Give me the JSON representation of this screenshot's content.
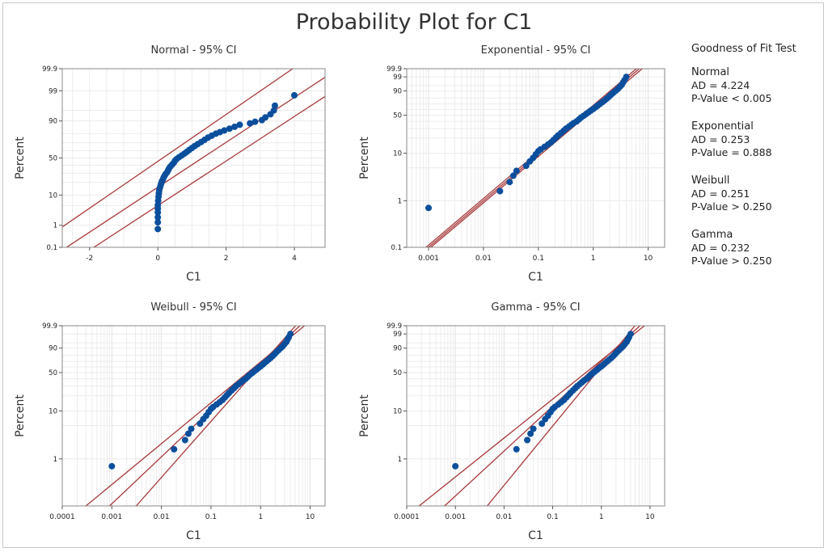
{
  "title": "Probability Plot for C1",
  "colors": {
    "point": "#0b4f9c",
    "line": "#a8393c",
    "grid": "#ececec",
    "axis": "#888888"
  },
  "goodness_of_fit": {
    "title": "Goodness of Fit Test",
    "entries": [
      {
        "name": "Normal",
        "ad": "AD = 4.224",
        "p": "P-Value < 0.005"
      },
      {
        "name": "Exponential",
        "ad": "AD = 0.253",
        "p": "P-Value = 0.888"
      },
      {
        "name": "Weibull",
        "ad": "AD = 0.251",
        "p": "P-Value > 0.250"
      },
      {
        "name": "Gamma",
        "ad": "AD = 0.232",
        "p": "P-Value > 0.250"
      }
    ]
  },
  "chart_data": [
    {
      "type": "scatter",
      "title": "Normal - 95% CI",
      "xlabel": "C1",
      "ylabel": "Percent",
      "x_scale": "linear",
      "xlim": [
        -2.8,
        4.9
      ],
      "x_ticks": [
        "-2",
        "0",
        "2",
        "4"
      ],
      "x_tick_values": [
        -2,
        0,
        2,
        4
      ],
      "y_scale": "normal-probability",
      "y_ticks": [
        "0.1",
        "1",
        "10",
        "50",
        "90",
        "99",
        "99.9"
      ],
      "y_tick_values": [
        0.1,
        1,
        10,
        50,
        90,
        99,
        99.9
      ],
      "fit_line": {
        "x": [
          -2.8,
          4.9
        ],
        "y": [
          0.0716,
          99.74
        ]
      },
      "ci_lower": {
        "x": [
          -2.0,
          4.9
        ],
        "y": [
          0.0716,
          98.34
        ]
      },
      "ci_upper": {
        "x": [
          -2.8,
          4.2
        ],
        "y": [
          0.85,
          99.95
        ]
      },
      "points": {
        "x": [
          0.0,
          0.0,
          0.0,
          0.0,
          0.0,
          0.0,
          0.01,
          0.02,
          0.03,
          0.04,
          0.06,
          0.08,
          0.1,
          0.12,
          0.15,
          0.17,
          0.2,
          0.23,
          0.27,
          0.3,
          0.33,
          0.37,
          0.42,
          0.47,
          0.5,
          0.55,
          0.62,
          0.7,
          0.78,
          0.85,
          0.92,
          1.0,
          1.08,
          1.17,
          1.27,
          1.37,
          1.47,
          1.58,
          1.7,
          1.82,
          1.95,
          2.1,
          2.25,
          2.4,
          2.7,
          2.85,
          3.05,
          3.15,
          3.3,
          3.4,
          3.43,
          4.0
        ],
        "y": [
          0.7,
          1.3,
          2.0,
          3.0,
          4.0,
          5.2,
          7.0,
          9.0,
          11.0,
          13.0,
          15.0,
          17.0,
          19.0,
          21.0,
          23.0,
          25.0,
          27.0,
          29.0,
          31.0,
          33.5,
          36.0,
          38.5,
          41.0,
          43.5,
          46.0,
          48.5,
          51.0,
          53.5,
          56.0,
          58.5,
          61.0,
          63.5,
          66.0,
          68.5,
          71.0,
          73.5,
          76.0,
          78.0,
          80.0,
          81.5,
          83.0,
          84.5,
          86.0,
          87.5,
          88.5,
          89.5,
          90.5,
          92.0,
          93.5,
          95.0,
          96.5,
          98.5
        ]
      }
    },
    {
      "type": "scatter",
      "title": "Exponential - 95% CI",
      "xlabel": "C1",
      "ylabel": "Percent",
      "x_scale": "log",
      "xlim": [
        0.0004,
        20
      ],
      "x_ticks": [
        "0.001",
        "0.01",
        "0.1",
        "1",
        "10"
      ],
      "x_tick_values": [
        0.001,
        0.01,
        0.1,
        1,
        10
      ],
      "y_scale": "exponential-probability",
      "y_ticks": [
        "0.1",
        "1",
        "10",
        "50",
        "90",
        "99",
        "99.9"
      ],
      "y_tick_values": [
        0.1,
        1,
        10,
        50,
        90,
        99,
        99.9
      ],
      "fit_line": {
        "x": [
          0.001,
          6.9
        ],
        "y": [
          0.1,
          99.9
        ]
      },
      "ci_lower": {
        "x": [
          0.0011,
          7.8
        ],
        "y": [
          0.1,
          99.9
        ]
      },
      "ci_upper": {
        "x": [
          0.0009,
          6.1
        ],
        "y": [
          0.1,
          99.9
        ]
      },
      "points": {
        "x": [
          0.001,
          0.02,
          0.03,
          0.035,
          0.04,
          0.06,
          0.07,
          0.08,
          0.09,
          0.1,
          0.11,
          0.13,
          0.15,
          0.17,
          0.19,
          0.21,
          0.23,
          0.26,
          0.29,
          0.32,
          0.36,
          0.4,
          0.44,
          0.5,
          0.55,
          0.6,
          0.67,
          0.74,
          0.82,
          0.9,
          1.0,
          1.1,
          1.2,
          1.32,
          1.45,
          1.6,
          1.75,
          1.92,
          2.1,
          2.3,
          2.55,
          2.8,
          3.05,
          3.3,
          3.5,
          3.7,
          4.0
        ],
        "y": [
          0.7,
          1.6,
          2.5,
          3.4,
          4.3,
          5.5,
          6.8,
          8.0,
          9.5,
          11.0,
          12.0,
          13.5,
          15.0,
          16.5,
          18.5,
          20.5,
          22.5,
          25.0,
          27.5,
          30.0,
          32.5,
          35.0,
          37.5,
          40.0,
          43.0,
          46.0,
          49.0,
          52.0,
          55.0,
          58.0,
          61.0,
          64.0,
          67.0,
          70.0,
          73.0,
          76.0,
          79.0,
          82.0,
          85.0,
          87.5,
          90.0,
          92.0,
          94.0,
          95.5,
          97.0,
          98.0,
          99.0
        ]
      }
    },
    {
      "type": "scatter",
      "title": "Weibull - 95% CI",
      "xlabel": "C1",
      "ylabel": "Percent",
      "x_scale": "log",
      "xlim": [
        0.0001,
        20
      ],
      "x_ticks": [
        "0.0001",
        "0.001",
        "0.01",
        "0.1",
        "1",
        "10"
      ],
      "x_tick_values": [
        0.0001,
        0.001,
        0.01,
        0.1,
        1,
        10
      ],
      "y_scale": "weibull-probability",
      "y_ticks": [
        "1",
        "10",
        "50",
        "90",
        "99.9"
      ],
      "y_tick_values": [
        1,
        10,
        50,
        90,
        99.9
      ],
      "fit_line": {
        "x": [
          0.0009,
          6.2
        ],
        "y": [
          0.1,
          99.9
        ]
      },
      "ci_lower": {
        "x": [
          0.0031,
          5.1
        ],
        "y": [
          0.1,
          99.9
        ]
      },
      "ci_upper": {
        "x": [
          0.0003,
          7.7
        ],
        "y": [
          0.1,
          99.9
        ]
      },
      "points": {
        "x": [
          0.001,
          0.018,
          0.03,
          0.035,
          0.04,
          0.06,
          0.07,
          0.08,
          0.09,
          0.1,
          0.11,
          0.13,
          0.15,
          0.17,
          0.19,
          0.21,
          0.23,
          0.26,
          0.29,
          0.32,
          0.36,
          0.4,
          0.44,
          0.5,
          0.55,
          0.6,
          0.67,
          0.74,
          0.82,
          0.9,
          1.0,
          1.1,
          1.2,
          1.32,
          1.45,
          1.6,
          1.75,
          1.92,
          2.1,
          2.3,
          2.55,
          2.8,
          3.05,
          3.3,
          3.5,
          3.7,
          4.0
        ],
        "y": [
          0.7,
          1.6,
          2.5,
          3.4,
          4.3,
          5.5,
          6.8,
          8.0,
          9.5,
          11.0,
          12.0,
          13.5,
          15.0,
          16.5,
          18.5,
          20.5,
          22.5,
          25.0,
          27.5,
          30.0,
          32.5,
          35.0,
          37.5,
          40.0,
          43.0,
          46.0,
          49.0,
          52.0,
          55.0,
          58.0,
          61.0,
          64.0,
          67.0,
          70.0,
          73.0,
          76.0,
          79.0,
          82.0,
          85.0,
          87.5,
          90.0,
          92.0,
          94.0,
          95.5,
          97.0,
          98.0,
          99.0
        ]
      }
    },
    {
      "type": "scatter",
      "title": "Gamma - 95% CI",
      "xlabel": "C1",
      "ylabel": "Percent",
      "x_scale": "log",
      "xlim": [
        0.0001,
        20
      ],
      "x_ticks": [
        "0.0001",
        "0.001",
        "0.01",
        "0.1",
        "1",
        "10"
      ],
      "x_tick_values": [
        0.0001,
        0.001,
        0.01,
        0.1,
        1,
        10
      ],
      "y_scale": "weibull-probability",
      "y_ticks": [
        "1",
        "10",
        "50",
        "90",
        "99",
        "99.9"
      ],
      "y_tick_values": [
        1,
        10,
        50,
        90,
        99,
        99.9
      ],
      "fit_line": {
        "x": [
          0.0006,
          6.2
        ],
        "y": [
          0.1,
          99.9
        ]
      },
      "ci_lower": {
        "x": [
          0.0045,
          4.9
        ],
        "y": [
          0.1,
          99.9
        ]
      },
      "ci_upper": {
        "x": [
          0.00018,
          7.7
        ],
        "y": [
          0.1,
          99.9
        ]
      },
      "points": {
        "x": [
          0.001,
          0.018,
          0.03,
          0.035,
          0.04,
          0.06,
          0.07,
          0.08,
          0.09,
          0.1,
          0.11,
          0.13,
          0.15,
          0.17,
          0.19,
          0.21,
          0.23,
          0.26,
          0.29,
          0.32,
          0.36,
          0.4,
          0.44,
          0.5,
          0.55,
          0.6,
          0.67,
          0.74,
          0.82,
          0.9,
          1.0,
          1.1,
          1.2,
          1.32,
          1.45,
          1.6,
          1.75,
          1.92,
          2.1,
          2.3,
          2.55,
          2.8,
          3.05,
          3.3,
          3.5,
          3.7,
          4.0
        ],
        "y": [
          0.7,
          1.6,
          2.5,
          3.4,
          4.3,
          5.5,
          6.8,
          8.0,
          9.5,
          11.0,
          12.0,
          13.5,
          15.0,
          16.5,
          18.5,
          20.5,
          22.5,
          25.0,
          27.5,
          30.0,
          32.5,
          35.0,
          37.5,
          40.0,
          43.0,
          46.0,
          49.0,
          52.0,
          55.0,
          58.0,
          61.0,
          64.0,
          67.0,
          70.0,
          73.0,
          76.0,
          79.0,
          82.0,
          85.0,
          87.5,
          90.0,
          92.0,
          94.0,
          95.5,
          97.0,
          98.0,
          99.0
        ]
      }
    }
  ]
}
